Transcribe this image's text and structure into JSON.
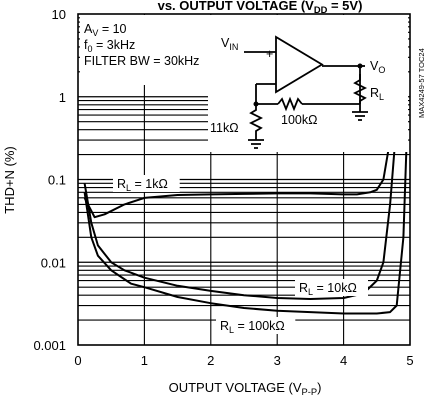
{
  "chart_data": {
    "type": "line",
    "title": "vs. OUTPUT VOLTAGE (V_DD = 5V)",
    "xlabel": "OUTPUT VOLTAGE (V_P-P)",
    "ylabel": "THD+N (%)",
    "xlim": [
      0,
      5
    ],
    "ylim": [
      0.001,
      10
    ],
    "yscale": "log",
    "grid": true,
    "x_ticks": [
      "0",
      "1",
      "2",
      "3",
      "4",
      "5"
    ],
    "y_ticks": [
      "0.001",
      "0.01",
      "0.1",
      "1",
      "10"
    ],
    "conditions": [
      "A_V = 10",
      "f_0 = 3kHz",
      "FILTER BW = 30kHz"
    ],
    "side_label": "MAX4249-57 TOC24",
    "circuit_labels": {
      "vin": "V_IN",
      "vo": "V_O",
      "rl": "R_L",
      "rg": "11kΩ",
      "rf": "100kΩ"
    },
    "series": [
      {
        "name": "R_L = 1kΩ",
        "x": [
          0.1,
          0.25,
          0.4,
          0.7,
          1.0,
          1.5,
          2.0,
          2.5,
          3.0,
          3.5,
          4.0,
          4.2,
          4.4,
          4.5,
          4.6,
          4.7,
          4.8,
          4.85
        ],
        "y": [
          0.06,
          0.035,
          0.038,
          0.05,
          0.06,
          0.065,
          0.066,
          0.067,
          0.068,
          0.068,
          0.066,
          0.066,
          0.07,
          0.075,
          0.1,
          0.3,
          1.5,
          5
        ]
      },
      {
        "name": "R_L = 10kΩ",
        "x": [
          0.1,
          0.2,
          0.3,
          0.5,
          0.7,
          1.0,
          1.5,
          2.0,
          2.5,
          3.0,
          3.5,
          4.0,
          4.3,
          4.5,
          4.6,
          4.7,
          4.8,
          4.85,
          4.9
        ],
        "y": [
          0.09,
          0.03,
          0.016,
          0.01,
          0.008,
          0.0065,
          0.0052,
          0.0045,
          0.004,
          0.0037,
          0.0036,
          0.0037,
          0.0042,
          0.006,
          0.01,
          0.05,
          0.5,
          3,
          8
        ]
      },
      {
        "name": "R_L = 100kΩ",
        "x": [
          0.1,
          0.2,
          0.3,
          0.5,
          0.8,
          1.0,
          1.5,
          2.0,
          2.5,
          3.0,
          3.5,
          4.0,
          4.5,
          4.7,
          4.8,
          4.9,
          4.95
        ],
        "y": [
          0.07,
          0.02,
          0.012,
          0.008,
          0.0055,
          0.005,
          0.0038,
          0.0032,
          0.0028,
          0.0026,
          0.0025,
          0.0024,
          0.0024,
          0.0025,
          0.003,
          0.02,
          0.3
        ]
      }
    ]
  }
}
